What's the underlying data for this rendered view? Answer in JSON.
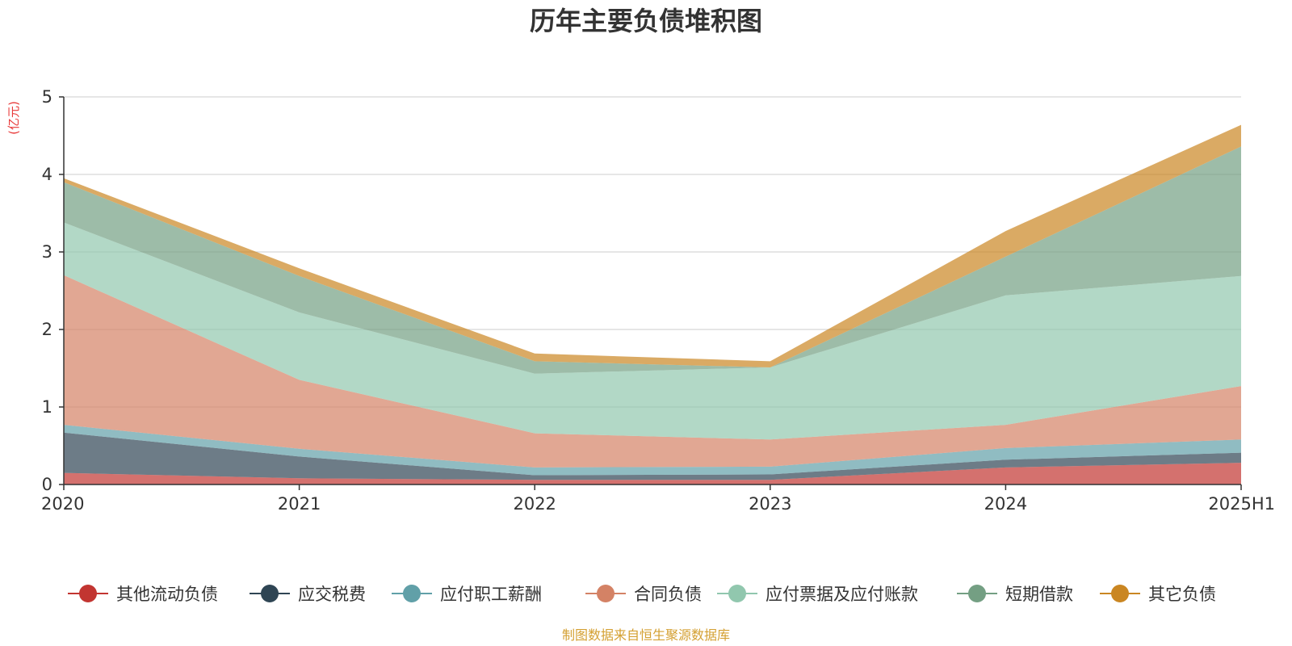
{
  "chart_data": {
    "type": "area",
    "stacked": true,
    "title": "历年主要负债堆积图",
    "ylabel": "(亿元)",
    "xlabel": "",
    "categories": [
      "2020",
      "2021",
      "2022",
      "2023",
      "2024",
      "2025H1"
    ],
    "ylim": [
      0,
      5
    ],
    "yticks": [
      0,
      1,
      2,
      3,
      4,
      5
    ],
    "grid": true,
    "legend_position": "bottom",
    "series": [
      {
        "name": "其他流动负债",
        "color": "#c23531",
        "values": [
          0.15,
          0.08,
          0.06,
          0.06,
          0.22,
          0.28
        ]
      },
      {
        "name": "应交税费",
        "color": "#2f4554",
        "values": [
          0.52,
          0.28,
          0.06,
          0.07,
          0.1,
          0.13
        ]
      },
      {
        "name": "应付职工薪酬",
        "color": "#61a0a8",
        "values": [
          0.1,
          0.1,
          0.1,
          0.1,
          0.15,
          0.17
        ]
      },
      {
        "name": "合同负债",
        "color": "#d48265",
        "values": [
          1.93,
          0.89,
          0.44,
          0.35,
          0.3,
          0.69
        ]
      },
      {
        "name": "应付票据及应付账款",
        "color": "#91c7ae",
        "values": [
          0.68,
          0.87,
          0.77,
          0.93,
          1.67,
          1.42
        ]
      },
      {
        "name": "短期借款",
        "color": "#749f83",
        "values": [
          0.52,
          0.47,
          0.16,
          0.0,
          0.5,
          1.67
        ]
      },
      {
        "name": "其它负债",
        "color": "#ca8622",
        "values": [
          0.05,
          0.1,
          0.1,
          0.08,
          0.33,
          0.28
        ]
      }
    ]
  },
  "footer": {
    "source": "制图数据来自恒生聚源数据库"
  }
}
